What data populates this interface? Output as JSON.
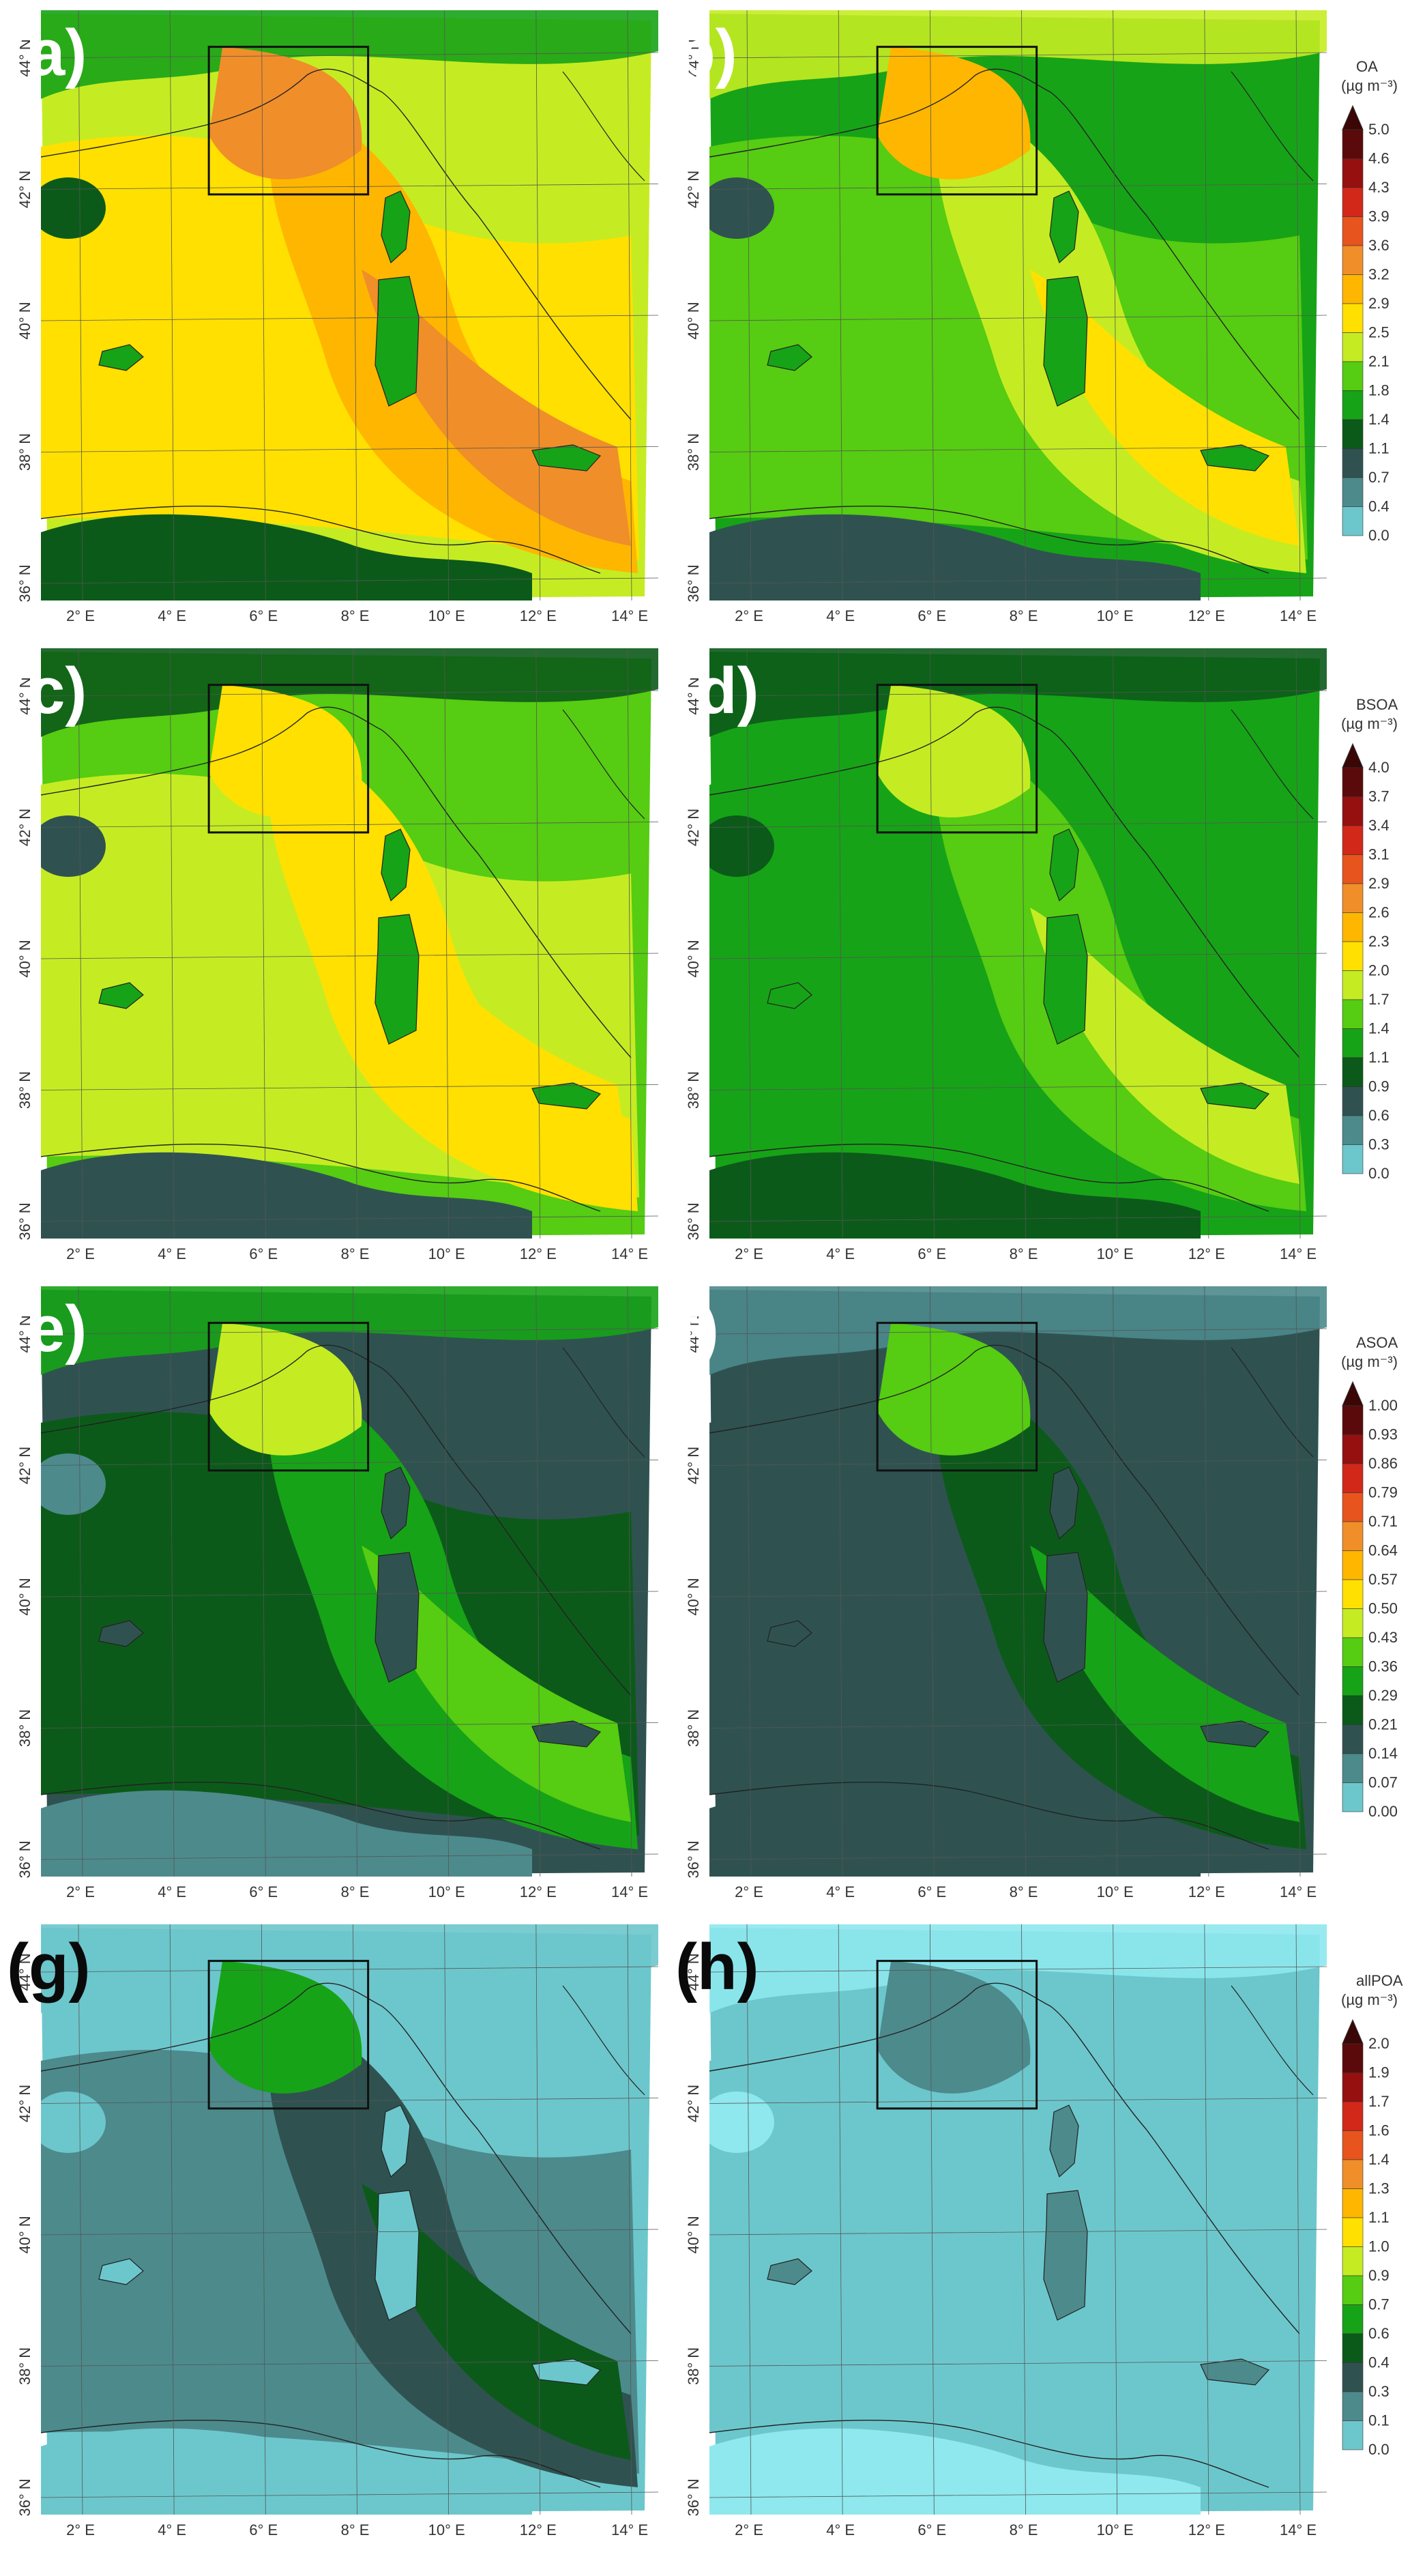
{
  "x_ticks": [
    "2° E",
    "4° E",
    "6° E",
    "8° E",
    "10° E",
    "12° E",
    "14° E"
  ],
  "y_ticks": [
    "36° N",
    "38° N",
    "40° N",
    "42° N",
    "44° N"
  ],
  "colors": {
    "c0": "#8ee8ee",
    "c1": "#6cc7cc",
    "c2": "#4d8a8c",
    "c3": "#2f5250",
    "c4": "#0c5a1a",
    "c5": "#17a317",
    "c6": "#56cc12",
    "c7": "#c5ec22",
    "c8": "#ffe000",
    "c9": "#ffb600",
    "c10": "#f08e2a",
    "c11": "#e8541d",
    "c12": "#d2281a",
    "c13": "#961010",
    "c14": "#5a0a0a"
  },
  "colorbars": [
    {
      "title": "OA",
      "unit": "(µg m⁻³)",
      "values": [
        "5.0",
        "4.6",
        "4.3",
        "3.9",
        "3.6",
        "3.2",
        "2.9",
        "2.5",
        "2.1",
        "1.8",
        "1.4",
        "1.1",
        "0.7",
        "0.4",
        "0.0"
      ]
    },
    {
      "title": "BSOA",
      "unit": "(µg m⁻³)",
      "values": [
        "4.0",
        "3.7",
        "3.4",
        "3.1",
        "2.9",
        "2.6",
        "2.3",
        "2.0",
        "1.7",
        "1.4",
        "1.1",
        "0.9",
        "0.6",
        "0.3",
        "0.0"
      ]
    },
    {
      "title": "ASOA",
      "unit": "(µg m⁻³)",
      "values": [
        "1.00",
        "0.93",
        "0.86",
        "0.79",
        "0.71",
        "0.64",
        "0.57",
        "0.50",
        "0.43",
        "0.36",
        "0.29",
        "0.21",
        "0.14",
        "0.07",
        "0.00"
      ]
    },
    {
      "title": "allPOA",
      "unit": "(µg m⁻³)",
      "values": [
        "2.0",
        "1.9",
        "1.7",
        "1.6",
        "1.4",
        "1.3",
        "1.1",
        "1.0",
        "0.9",
        "0.7",
        "0.6",
        "0.4",
        "0.3",
        "0.1",
        "0.0"
      ]
    }
  ],
  "panels": [
    {
      "label": "(a)",
      "label_color": "#ffffff",
      "sea": "c8",
      "bg": "c7",
      "mid": "c9",
      "hot": "c10",
      "north": "c5",
      "south": "c4",
      "box": "c10",
      "corsica": "c5"
    },
    {
      "label": "b)",
      "label_color": "#ffffff",
      "sea": "c6",
      "bg": "c5",
      "mid": "c7",
      "hot": "c8",
      "north": "c7",
      "south": "c3",
      "box": "c9",
      "corsica": "c5"
    },
    {
      "label": "(c)",
      "label_color": "#ffffff",
      "sea": "c7",
      "bg": "c6",
      "mid": "c8",
      "hot": "c8",
      "north": "c4",
      "south": "c3",
      "box": "c8",
      "corsica": "c5"
    },
    {
      "label": "(d)",
      "label_color": "#ffffff",
      "sea": "c5",
      "bg": "c5",
      "mid": "c6",
      "hot": "c7",
      "north": "c4",
      "south": "c4",
      "box": "c7",
      "corsica": "c5"
    },
    {
      "label": "(e)",
      "label_color": "#ffffff",
      "sea": "c4",
      "bg": "c3",
      "mid": "c5",
      "hot": "c6",
      "north": "c5",
      "south": "c2",
      "box": "c7",
      "corsica": "c3"
    },
    {
      "label": "f)",
      "label_color": "#ffffff",
      "sea": "c3",
      "bg": "c3",
      "mid": "c4",
      "hot": "c5",
      "north": "c2",
      "south": "c3",
      "box": "c6",
      "corsica": "c3"
    },
    {
      "label": "(g)",
      "label_color": "#0a0a0a",
      "sea": "c2",
      "bg": "c1",
      "mid": "c3",
      "hot": "c4",
      "north": "c1",
      "south": "c1",
      "box": "c5",
      "corsica": "c1"
    },
    {
      "label": "(h)",
      "label_color": "#0a0a0a",
      "sea": "c1",
      "bg": "c1",
      "mid": "c1",
      "hot": "c1",
      "north": "c0",
      "south": "c0",
      "box": "c2",
      "corsica": "c2"
    }
  ]
}
